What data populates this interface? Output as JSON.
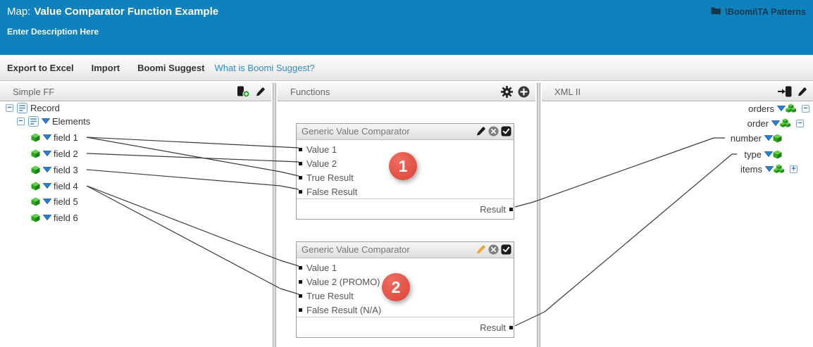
{
  "header": {
    "map_label": "Map:",
    "title": "Value Comparator Function Example",
    "description": "Enter Description Here",
    "folder_path": "\\Boomi\\TA Patterns"
  },
  "toolbar": {
    "export": "Export to Excel",
    "import": "Import",
    "suggest": "Boomi Suggest",
    "suggest_link": "What is Boomi Suggest?"
  },
  "source_panel": {
    "title": "Simple FF",
    "nodes": [
      {
        "label": "Record",
        "type": "record",
        "expander": "collapse",
        "caret": false
      },
      {
        "label": "Elements",
        "type": "record",
        "expander": "collapse",
        "caret": true
      },
      {
        "label": "field 1",
        "type": "element",
        "caret": true
      },
      {
        "label": "field 2",
        "type": "element",
        "caret": true
      },
      {
        "label": "field 3",
        "type": "element",
        "caret": true
      },
      {
        "label": "field 4",
        "type": "element",
        "caret": true
      },
      {
        "label": "field 5",
        "type": "element",
        "caret": true
      },
      {
        "label": "field 6",
        "type": "element",
        "caret": true
      }
    ]
  },
  "functions_panel": {
    "title": "Functions",
    "boxes": [
      {
        "title": "Generic Value Comparator",
        "inputs": [
          "Value 1",
          "Value 2",
          "True Result",
          "False Result"
        ],
        "output": "Result",
        "badge": "1",
        "pencil_color": "#1c1c1c"
      },
      {
        "title": "Generic Value Comparator",
        "inputs": [
          "Value 1",
          "Value 2 (PROMO)",
          "True Result",
          "False Result (N/A)"
        ],
        "output": "Result",
        "badge": "2",
        "pencil_color": "#eda63e"
      }
    ]
  },
  "target_panel": {
    "title": "XML II",
    "nodes": [
      {
        "label": "orders",
        "type": "parent",
        "expander": "collapse",
        "caret": true
      },
      {
        "label": "order",
        "type": "parent",
        "expander": "collapse",
        "caret": true
      },
      {
        "label": "number",
        "type": "element",
        "caret": true
      },
      {
        "label": "type",
        "type": "element",
        "caret": true
      },
      {
        "label": "items",
        "type": "parent",
        "expander": "expand",
        "caret": true
      }
    ]
  },
  "connections": [
    {
      "from": "field 1",
      "to": "Function 1 / Value 1"
    },
    {
      "from": "field 1",
      "to": "Function 1 / True Result"
    },
    {
      "from": "field 2",
      "to": "Function 1 / Value 2"
    },
    {
      "from": "field 3",
      "to": "Function 1 / False Result"
    },
    {
      "from": "field 4",
      "to": "Function 2 / Value 1"
    },
    {
      "from": "field 4",
      "to": "Function 2 / True Result"
    },
    {
      "from": "Function 1 / Result",
      "to": "number"
    },
    {
      "from": "Function 2 / Result",
      "to": "type"
    }
  ],
  "colors": {
    "header_blue": "#0f81bd",
    "link_blue": "#2f8dc9",
    "badge_red": "#dc4236",
    "element_green": "#2fa51f",
    "caret_blue": "#2a7fd4"
  }
}
